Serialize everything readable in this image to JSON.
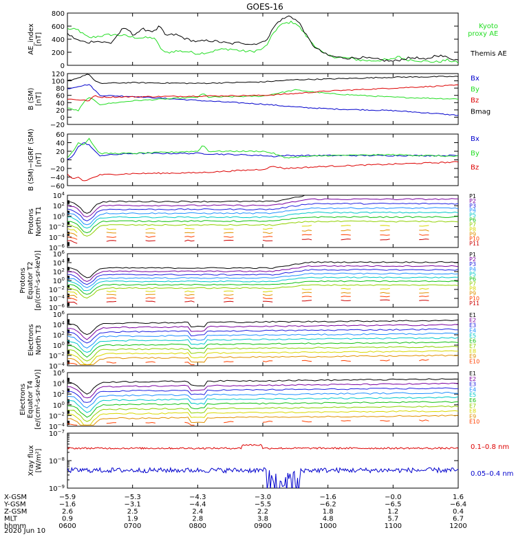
{
  "title": "GOES-16",
  "date_label": "2020 Jun 10",
  "colors": {
    "black": "#000000",
    "blue": "#0000cc",
    "green": "#22dd22",
    "red": "#dd0000",
    "channels": [
      "#000000",
      "#7a00a0",
      "#2020e0",
      "#1e90ff",
      "#00c8c8",
      "#10c010",
      "#90d000",
      "#d8d800",
      "#e09000",
      "#ff4000",
      "#cc0000"
    ]
  },
  "chart_data": [
    {
      "id": "ae",
      "type": "line",
      "ylabel": [
        "AE_index",
        "[nT]"
      ],
      "ylim": [
        0,
        800
      ],
      "yticks": [
        0,
        200,
        400,
        600,
        800
      ],
      "series": [
        {
          "name": "Kyoto",
          "name2": "proxy AE",
          "color": "#22dd22",
          "x": [
            600,
            605,
            610,
            615,
            620,
            630,
            640,
            650,
            700,
            710,
            720,
            725,
            730,
            740,
            750,
            800,
            810,
            820,
            830,
            840,
            850,
            900,
            905,
            910,
            915,
            920,
            925,
            930,
            935,
            940,
            945,
            950,
            955,
            1000,
            1010,
            1020,
            1030,
            1040,
            1050,
            1100,
            1105,
            1110,
            1120,
            1130,
            1140,
            1150,
            1200
          ],
          "y": [
            560,
            550,
            540,
            470,
            420,
            450,
            470,
            460,
            430,
            420,
            420,
            280,
            190,
            220,
            210,
            180,
            200,
            240,
            250,
            220,
            210,
            250,
            340,
            500,
            600,
            640,
            660,
            650,
            560,
            450,
            350,
            270,
            190,
            150,
            120,
            110,
            80,
            70,
            80,
            90,
            150,
            90,
            80,
            60,
            50,
            80,
            40
          ]
        },
        {
          "name": "Themis AE",
          "color": "#000000",
          "x": [
            600,
            605,
            610,
            615,
            620,
            625,
            630,
            640,
            650,
            655,
            700,
            710,
            720,
            725,
            730,
            740,
            750,
            800,
            810,
            820,
            830,
            840,
            850,
            855,
            900,
            905,
            910,
            915,
            920,
            925,
            930,
            935,
            940,
            945,
            950,
            955,
            1000,
            1010,
            1020,
            1030,
            1040,
            1050,
            1100,
            1110,
            1120,
            1130,
            1140,
            1150,
            1200
          ],
          "y": [
            480,
            430,
            380,
            360,
            350,
            380,
            360,
            340,
            540,
            560,
            470,
            550,
            520,
            600,
            460,
            470,
            400,
            360,
            380,
            360,
            330,
            350,
            320,
            340,
            350,
            430,
            580,
            680,
            720,
            760,
            700,
            620,
            460,
            330,
            250,
            200,
            150,
            120,
            110,
            120,
            100,
            80,
            60,
            100,
            120,
            80,
            160,
            120,
            80
          ]
        }
      ],
      "legend": [
        "Kyoto",
        "proxy AE",
        "Themis AE"
      ]
    },
    {
      "id": "bsm",
      "type": "line",
      "ylabel": [
        "B (SM)",
        "[nT]"
      ],
      "ylim": [
        -20,
        120
      ],
      "yticks": [
        -20,
        0,
        20,
        40,
        60,
        80,
        100,
        120
      ],
      "series": [
        {
          "name": "Bx",
          "color": "#0000cc",
          "x": [
            600,
            610,
            620,
            625,
            630,
            700,
            800,
            900,
            930,
            1000,
            1100,
            1130,
            1200
          ],
          "y": [
            78,
            85,
            90,
            75,
            60,
            57,
            46,
            36,
            28,
            23,
            18,
            12,
            5
          ]
        },
        {
          "name": "By",
          "color": "#22dd22",
          "x": [
            600,
            610,
            615,
            620,
            625,
            630,
            700,
            800,
            805,
            810,
            900,
            930,
            1000,
            1100,
            1200
          ],
          "y": [
            25,
            18,
            40,
            55,
            45,
            35,
            45,
            55,
            65,
            55,
            58,
            75,
            65,
            55,
            50
          ]
        },
        {
          "name": "Bz",
          "color": "#dd0000",
          "x": [
            600,
            610,
            620,
            625,
            630,
            700,
            800,
            900,
            930,
            1000,
            1100,
            1200
          ],
          "y": [
            50,
            48,
            45,
            60,
            55,
            56,
            58,
            60,
            65,
            72,
            80,
            88
          ]
        },
        {
          "name": "Bmag",
          "color": "#000000",
          "x": [
            600,
            610,
            615,
            620,
            625,
            630,
            700,
            800,
            900,
            930,
            1000,
            1100,
            1200
          ],
          "y": [
            100,
            108,
            115,
            118,
            100,
            93,
            95,
            93,
            97,
            103,
            105,
            110,
            112
          ]
        }
      ],
      "legend": [
        "Bx",
        "By",
        "Bz",
        "Bmag"
      ]
    },
    {
      "id": "bigrf",
      "type": "line",
      "ylabel": [
        "B (SM)−IGRF (SM)",
        "[nT]"
      ],
      "ylim": [
        -60,
        60
      ],
      "yticks": [
        -60,
        -40,
        -20,
        0,
        20,
        40,
        60
      ],
      "series": [
        {
          "name": "Bx",
          "color": "#0000cc",
          "x": [
            600,
            605,
            610,
            615,
            620,
            625,
            630,
            700,
            800,
            900,
            910,
            920,
            1000,
            1100,
            1200
          ],
          "y": [
            0,
            10,
            30,
            40,
            35,
            20,
            10,
            15,
            15,
            10,
            8,
            10,
            10,
            10,
            10
          ]
        },
        {
          "name": "By",
          "color": "#22dd22",
          "x": [
            600,
            605,
            610,
            615,
            620,
            625,
            630,
            700,
            800,
            805,
            810,
            900,
            910,
            920,
            1000,
            1100,
            1200
          ],
          "y": [
            5,
            20,
            40,
            35,
            50,
            30,
            15,
            15,
            20,
            35,
            20,
            20,
            15,
            5,
            10,
            12,
            8
          ]
        },
        {
          "name": "Bz",
          "color": "#dd0000",
          "x": [
            600,
            605,
            610,
            615,
            620,
            630,
            700,
            800,
            900,
            910,
            920,
            1000,
            1100,
            1200
          ],
          "y": [
            -35,
            -45,
            -40,
            -50,
            -45,
            -35,
            -32,
            -30,
            -22,
            -15,
            -20,
            -15,
            -10,
            -5
          ]
        }
      ],
      "legend": [
        "Bx",
        "By",
        "Bz"
      ]
    },
    {
      "id": "pn",
      "type": "line",
      "log": true,
      "ylabel": [
        "Protons",
        "North T1"
      ],
      "ylim": [
        -6,
        4
      ],
      "yticks": [
        -6,
        -4,
        -2,
        0,
        2,
        4
      ],
      "channels": [
        "P1",
        "P2",
        "P3",
        "P4",
        "P5",
        "P6",
        "P7",
        "P8",
        "P9",
        "P10",
        "P11"
      ],
      "dashed_from": 7
    },
    {
      "id": "pe",
      "type": "line",
      "log": true,
      "ylabel": [
        "Protons",
        "Equator T2",
        "[p/(cm²-s-sr-keV)]"
      ],
      "ylim": [
        -6,
        6
      ],
      "yticks": [
        -6,
        -4,
        -2,
        0,
        2,
        4,
        6
      ],
      "channels": [
        "P1",
        "P2",
        "P3",
        "P4",
        "P5",
        "P6",
        "P7",
        "P8",
        "P9",
        "P10",
        "P11"
      ],
      "dashed_from": 7
    },
    {
      "id": "en",
      "type": "line",
      "log": true,
      "ylabel": [
        "Electrons",
        "North T3"
      ],
      "ylim": [
        -4,
        6
      ],
      "yticks": [
        -4,
        -2,
        0,
        2,
        4,
        6
      ],
      "channels": [
        "E1",
        "E2",
        "E3",
        "E4",
        "E5",
        "E6",
        "E7",
        "E8",
        "E9",
        "E10"
      ],
      "dashed_from": 9
    },
    {
      "id": "ee",
      "type": "line",
      "log": true,
      "ylabel": [
        "Electrons",
        "Equator T4",
        "[e/(cm²-s-sr-keV)]"
      ],
      "ylim": [
        -4,
        6
      ],
      "yticks": [
        -4,
        -2,
        0,
        2,
        4,
        6
      ],
      "channels": [
        "E1",
        "E2",
        "E3",
        "E4",
        "E5",
        "E6",
        "E7",
        "E8",
        "E9",
        "E10"
      ],
      "dashed_from": 9
    },
    {
      "id": "xray",
      "type": "line",
      "log": true,
      "ylabel": [
        "Xray flux",
        "[W/m²]"
      ],
      "ylim": [
        -9,
        -7
      ],
      "yticks": [
        -9,
        -8,
        -7
      ],
      "series": [
        {
          "name": "0.1–0.8 nm",
          "color": "#dd0000",
          "base": -7.55
        },
        {
          "name": "0.05–0.4 nm",
          "color": "#0000cc",
          "base": -8.35
        }
      ],
      "legend": [
        "0.1–0.8 nm",
        "0.05–0.4 nm"
      ]
    }
  ],
  "orbit_table": {
    "rows": [
      {
        "label": "X-GSM",
        "values": [
          "−5.9",
          "−5.3",
          "−4.3",
          "−3.0",
          "−1.6",
          "−0.0",
          "1.6"
        ]
      },
      {
        "label": "Y-GSM",
        "values": [
          "−1.6",
          "−3.1",
          "−4.4",
          "−5.5",
          "−6.2",
          "−6.5",
          "−6.4"
        ]
      },
      {
        "label": "Z-GSM",
        "values": [
          "2.6",
          "2.5",
          "2.4",
          "2.2",
          "1.8",
          "1.2",
          "0.4"
        ]
      },
      {
        "label": "MLT",
        "values": [
          "0.9",
          "1.9",
          "2.8",
          "3.8",
          "4.8",
          "5.7",
          "6.7"
        ]
      },
      {
        "label": "hhmm",
        "values": [
          "0600",
          "0700",
          "0800",
          "0900",
          "1000",
          "1100",
          "1200"
        ]
      }
    ]
  }
}
